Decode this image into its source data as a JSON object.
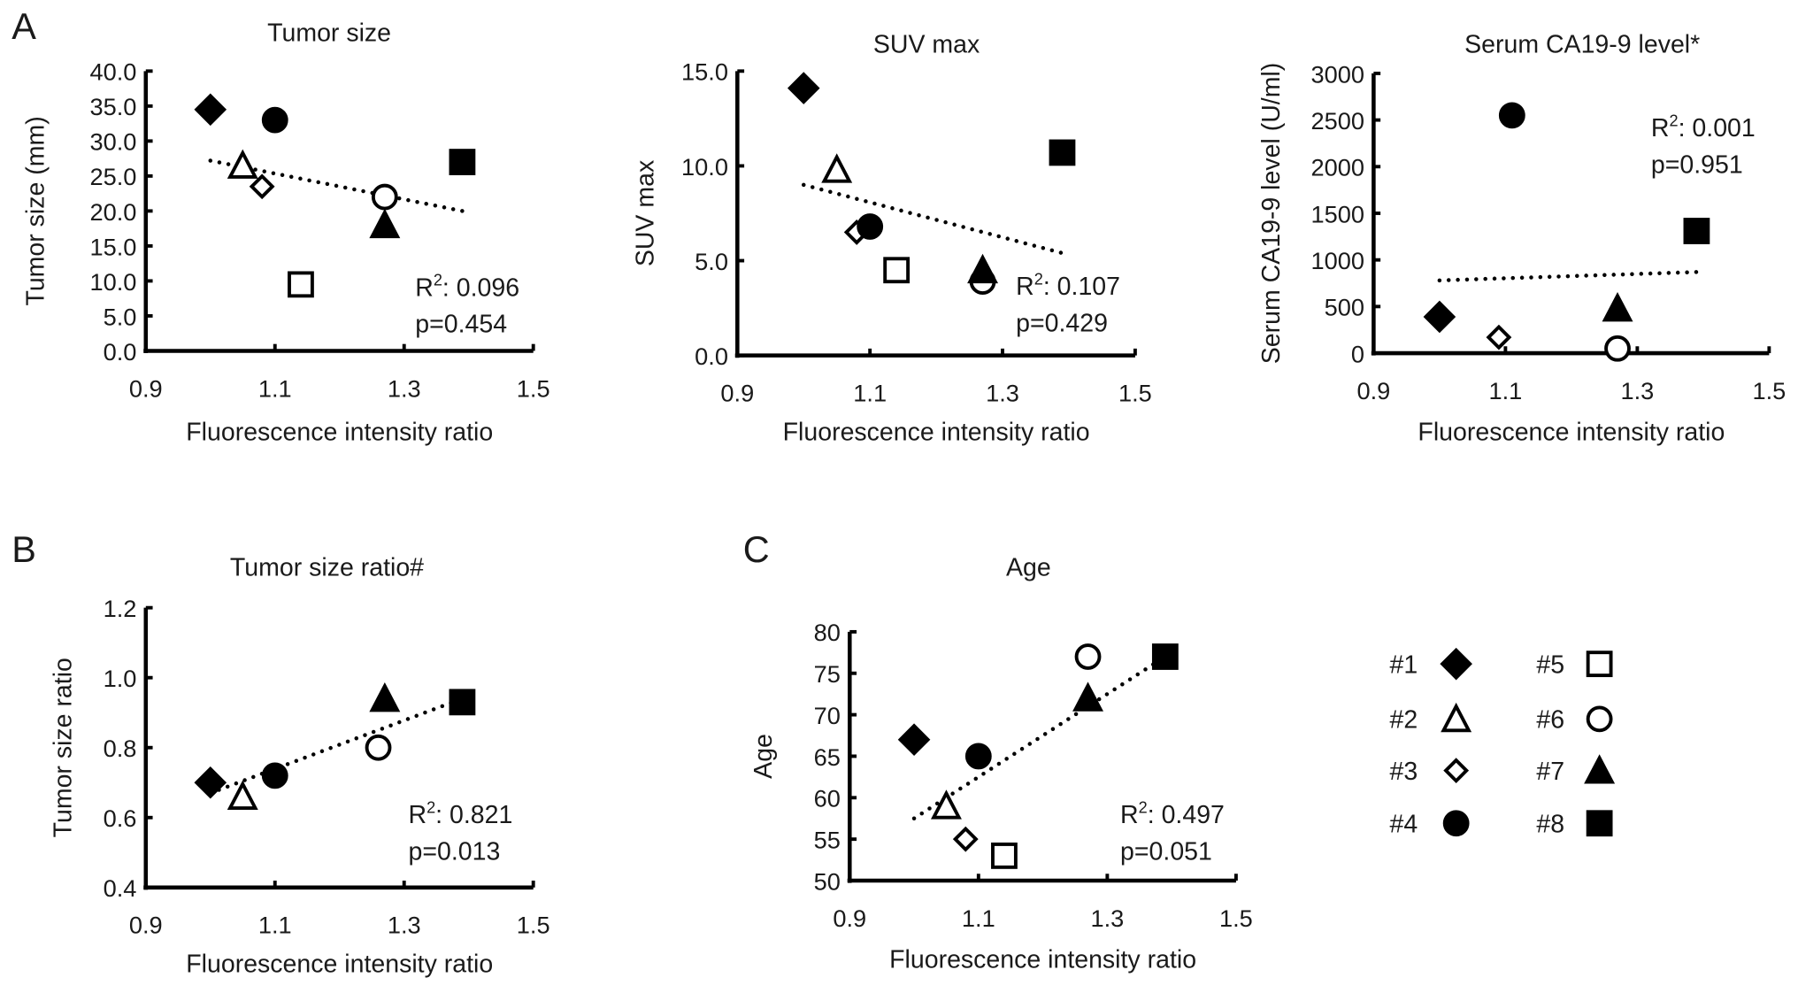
{
  "chart_data": [
    {
      "panel_label": "A",
      "type": "scatter",
      "title": "Tumor size",
      "xlabel": "Fluorescence intensity ratio",
      "ylabel": "Tumor size (mm)",
      "xlim": [
        0.9,
        1.5
      ],
      "xticks": [
        "0.9",
        "1.1",
        "1.3",
        "1.5"
      ],
      "ylim": [
        0,
        40
      ],
      "yticks": [
        "0.0",
        "5.0",
        "10.0",
        "15.0",
        "20.0",
        "25.0",
        "30.0",
        "35.0",
        "40.0"
      ],
      "points": [
        {
          "id": "#1",
          "x": 1.0,
          "y": 34.5
        },
        {
          "id": "#2",
          "x": 1.05,
          "y": 26.5
        },
        {
          "id": "#3",
          "x": 1.08,
          "y": 23.5
        },
        {
          "id": "#4",
          "x": 1.1,
          "y": 33.0
        },
        {
          "id": "#5",
          "x": 1.14,
          "y": 9.5
        },
        {
          "id": "#6",
          "x": 1.27,
          "y": 22.0
        },
        {
          "id": "#7",
          "x": 1.27,
          "y": 18.0
        },
        {
          "id": "#8",
          "x": 1.39,
          "y": 27.0
        }
      ],
      "trendline": {
        "x": [
          1.0,
          1.39
        ],
        "y": [
          27.2,
          20.0
        ]
      },
      "r2_prefix": "R",
      "r2_sup": "2",
      "r2": ": 0.096",
      "p": "p=0.454"
    },
    {
      "panel_label": "",
      "type": "scatter",
      "title": "SUV max",
      "xlabel": "Fluorescence intensity ratio",
      "ylabel": "SUV max",
      "xlim": [
        0.9,
        1.5
      ],
      "xticks": [
        "0.9",
        "1.1",
        "1.3",
        "1.5"
      ],
      "ylim": [
        0,
        15
      ],
      "yticks": [
        "0.0",
        "5.0",
        "10.0",
        "15.0"
      ],
      "points": [
        {
          "id": "#1",
          "x": 1.0,
          "y": 14.1
        },
        {
          "id": "#2",
          "x": 1.05,
          "y": 9.8
        },
        {
          "id": "#3",
          "x": 1.08,
          "y": 6.5
        },
        {
          "id": "#4",
          "x": 1.1,
          "y": 6.8
        },
        {
          "id": "#5",
          "x": 1.14,
          "y": 4.5
        },
        {
          "id": "#6",
          "x": 1.27,
          "y": 3.9
        },
        {
          "id": "#7",
          "x": 1.27,
          "y": 4.5
        },
        {
          "id": "#8",
          "x": 1.39,
          "y": 10.7
        }
      ],
      "trendline": {
        "x": [
          1.0,
          1.39
        ],
        "y": [
          9.0,
          5.4
        ]
      },
      "r2_prefix": "R",
      "r2_sup": "2",
      "r2": ": 0.107",
      "p": "p=0.429"
    },
    {
      "panel_label": "",
      "type": "scatter",
      "title": "Serum CA19-9 level*",
      "xlabel": "Fluorescence intensity ratio",
      "ylabel": "Serum CA19-9 level (U/ml)",
      "xlim": [
        0.9,
        1.5
      ],
      "xticks": [
        "0.9",
        "1.1",
        "1.3",
        "1.5"
      ],
      "ylim": [
        0,
        3000
      ],
      "yticks": [
        "0",
        "500",
        "1000",
        "1500",
        "2000",
        "2500",
        "3000"
      ],
      "points": [
        {
          "id": "#1",
          "x": 1.0,
          "y": 390
        },
        {
          "id": "#3",
          "x": 1.09,
          "y": 170
        },
        {
          "id": "#4",
          "x": 1.11,
          "y": 2550
        },
        {
          "id": "#6",
          "x": 1.27,
          "y": 50
        },
        {
          "id": "#7",
          "x": 1.27,
          "y": 480
        },
        {
          "id": "#8",
          "x": 1.39,
          "y": 1310
        }
      ],
      "trendline": {
        "x": [
          1.0,
          1.39
        ],
        "y": [
          780,
          870
        ]
      },
      "r2_prefix": "R",
      "r2_sup": "2",
      "r2": ": 0.001",
      "p": "p=0.951"
    },
    {
      "panel_label": "B",
      "type": "scatter",
      "title": "Tumor size ratio#",
      "xlabel": "Fluorescence intensity ratio",
      "ylabel": "Tumor size ratio",
      "xlim": [
        0.9,
        1.5
      ],
      "xticks": [
        "0.9",
        "1.1",
        "1.3",
        "1.5"
      ],
      "ylim": [
        0.4,
        1.2
      ],
      "yticks": [
        "0.4",
        "0.6",
        "0.8",
        "1.0",
        "1.2"
      ],
      "points": [
        {
          "id": "#1",
          "x": 1.0,
          "y": 0.7
        },
        {
          "id": "#2",
          "x": 1.05,
          "y": 0.66
        },
        {
          "id": "#4",
          "x": 1.1,
          "y": 0.72
        },
        {
          "id": "#6",
          "x": 1.26,
          "y": 0.8
        },
        {
          "id": "#7",
          "x": 1.27,
          "y": 0.94
        },
        {
          "id": "#8",
          "x": 1.39,
          "y": 0.93
        }
      ],
      "trendline": {
        "x": [
          1.0,
          1.39
        ],
        "y": [
          0.67,
          0.94
        ]
      },
      "r2_prefix": "R",
      "r2_sup": "2",
      "r2": ": 0.821",
      "p": "p=0.013"
    },
    {
      "panel_label": "C",
      "type": "scatter",
      "title": "Age",
      "xlabel": "Fluorescence intensity ratio",
      "ylabel": "Age",
      "xlim": [
        0.9,
        1.5
      ],
      "xticks": [
        "0.9",
        "1.1",
        "1.3",
        "1.5"
      ],
      "ylim": [
        50,
        80
      ],
      "yticks": [
        "50",
        "55",
        "60",
        "65",
        "70",
        "75",
        "80"
      ],
      "points": [
        {
          "id": "#1",
          "x": 1.0,
          "y": 67
        },
        {
          "id": "#2",
          "x": 1.05,
          "y": 59
        },
        {
          "id": "#3",
          "x": 1.08,
          "y": 55
        },
        {
          "id": "#4",
          "x": 1.1,
          "y": 65
        },
        {
          "id": "#5",
          "x": 1.14,
          "y": 53
        },
        {
          "id": "#6",
          "x": 1.27,
          "y": 77
        },
        {
          "id": "#7",
          "x": 1.27,
          "y": 72
        },
        {
          "id": "#8",
          "x": 1.39,
          "y": 77
        }
      ],
      "trendline": {
        "x": [
          1.0,
          1.39
        ],
        "y": [
          57.5,
          77.0
        ]
      },
      "r2_prefix": "R",
      "r2_sup": "2",
      "r2": ": 0.497",
      "p": "p=0.051"
    }
  ],
  "legend": [
    {
      "id": "#1",
      "marker": "filled-diamond"
    },
    {
      "id": "#2",
      "marker": "open-triangle"
    },
    {
      "id": "#3",
      "marker": "open-diamond"
    },
    {
      "id": "#4",
      "marker": "filled-circle"
    },
    {
      "id": "#5",
      "marker": "open-square"
    },
    {
      "id": "#6",
      "marker": "open-circle"
    },
    {
      "id": "#7",
      "marker": "filled-triangle"
    },
    {
      "id": "#8",
      "marker": "filled-square"
    }
  ],
  "colors": {
    "ink": "#000000",
    "text": "#1a1a1a"
  }
}
